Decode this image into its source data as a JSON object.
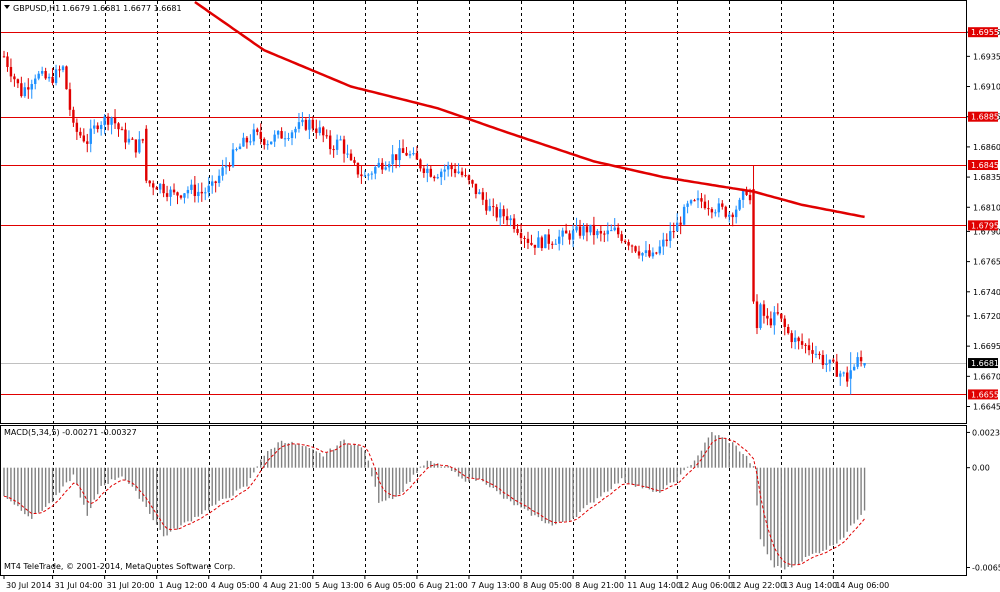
{
  "header": {
    "symbol_label": "GBPUSD,H1",
    "ohlc_label": "1.6679 1.6681 1.6677 1.6681"
  },
  "macd_label": "MACD(5,34,5) -0.00271 -0.00327",
  "copyright": "MT4 TeleTrade, © 2001-2014, MetaQuotes Software Corp.",
  "colors": {
    "bull": "#1e90ff",
    "bear": "#e00000",
    "level_line": "#e00000",
    "ma_line": "#e00000",
    "histogram": "#808080",
    "signal": "#e00000",
    "current_price_tag": "#000000"
  },
  "chart_data": [
    {
      "type": "candlestick",
      "symbol": "GBPUSD",
      "timeframe": "H1",
      "ylim": [
        1.6633,
        1.698
      ],
      "y_ticks": [
        "1.6955",
        "1.6935",
        "1.6910",
        "1.6885",
        "1.6860",
        "1.6835",
        "1.6810",
        "1.6790",
        "1.6765",
        "1.6740",
        "1.6720",
        "1.6695",
        "1.6670",
        "1.6645"
      ],
      "x_ticks": [
        "30 Jul 2014",
        "31 Jul 04:00",
        "31 Jul 20:00",
        "1 Aug 12:00",
        "4 Aug 05:00",
        "4 Aug 21:00",
        "5 Aug 13:00",
        "6 Aug 05:00",
        "6 Aug 21:00",
        "7 Aug 13:00",
        "8 Aug 05:00",
        "8 Aug 21:00",
        "11 Aug 14:00",
        "12 Aug 06:00",
        "12 Aug 22:00",
        "13 Aug 14:00",
        "14 Aug 06:00"
      ],
      "horizontal_levels": [
        1.6955,
        1.6885,
        1.6845,
        1.6795,
        1.6655
      ],
      "current_price": 1.6681,
      "last_candle": {
        "open": 1.6679,
        "high": 1.6681,
        "low": 1.6677,
        "close": 1.6681
      },
      "close_path": [
        [
          0,
          1.6935
        ],
        [
          5,
          1.6905
        ],
        [
          9,
          1.692
        ],
        [
          13,
          1.6915
        ],
        [
          17,
          1.6925
        ],
        [
          20,
          1.6875
        ],
        [
          24,
          1.6865
        ],
        [
          27,
          1.688
        ],
        [
          31,
          1.6885
        ],
        [
          34,
          1.687
        ],
        [
          38,
          1.686
        ],
        [
          41,
          1.6868
        ],
        [
          42,
          1.683
        ],
        [
          45,
          1.6828
        ],
        [
          49,
          1.682
        ],
        [
          53,
          1.6825
        ],
        [
          57,
          1.6822
        ],
        [
          60,
          1.6826
        ],
        [
          64,
          1.6845
        ],
        [
          68,
          1.686
        ],
        [
          72,
          1.687
        ],
        [
          76,
          1.6865
        ],
        [
          80,
          1.687
        ],
        [
          84,
          1.6875
        ],
        [
          88,
          1.688
        ],
        [
          91,
          1.6873
        ],
        [
          94,
          1.686
        ],
        [
          97,
          1.6865
        ],
        [
          100,
          1.6845
        ],
        [
          104,
          1.6835
        ],
        [
          108,
          1.6845
        ],
        [
          112,
          1.6852
        ],
        [
          116,
          1.6855
        ],
        [
          120,
          1.6845
        ],
        [
          124,
          1.6838
        ],
        [
          128,
          1.6843
        ],
        [
          131,
          1.684
        ],
        [
          134,
          1.683
        ],
        [
          137,
          1.682
        ],
        [
          141,
          1.6805
        ],
        [
          145,
          1.6803
        ],
        [
          149,
          1.679
        ],
        [
          152,
          1.678
        ],
        [
          156,
          1.6782
        ],
        [
          160,
          1.6785
        ],
        [
          164,
          1.6788
        ],
        [
          168,
          1.6792
        ],
        [
          172,
          1.6786
        ],
        [
          176,
          1.679
        ],
        [
          180,
          1.6782
        ],
        [
          184,
          1.6772
        ],
        [
          187,
          1.6768
        ],
        [
          190,
          1.678
        ],
        [
          194,
          1.6795
        ],
        [
          197,
          1.681
        ],
        [
          201,
          1.6815
        ],
        [
          205,
          1.681
        ],
        [
          209,
          1.6805
        ],
        [
          212,
          1.6812
        ],
        [
          214,
          1.6825
        ],
        [
          216,
          1.6805
        ],
        [
          217,
          1.673
        ],
        [
          220,
          1.6715
        ],
        [
          223,
          1.672
        ],
        [
          226,
          1.6705
        ],
        [
          229,
          1.6697
        ],
        [
          233,
          1.6693
        ],
        [
          236,
          1.6683
        ],
        [
          240,
          1.6675
        ],
        [
          243,
          1.6668
        ],
        [
          246,
          1.6683
        ],
        [
          248,
          1.6681
        ]
      ],
      "big_bars": [
        {
          "i": 41,
          "open": 1.6875,
          "high": 1.6878,
          "low": 1.683,
          "close": 1.6832
        },
        {
          "i": 216,
          "open": 1.6825,
          "high": 1.6845,
          "low": 1.673,
          "close": 1.6732
        },
        {
          "i": 217,
          "open": 1.6732,
          "high": 1.6738,
          "low": 1.6705,
          "close": 1.671
        },
        {
          "i": 244,
          "open": 1.6668,
          "high": 1.669,
          "low": 1.6655,
          "close": 1.6675
        }
      ],
      "moving_average": [
        [
          55,
          1.698
        ],
        [
          75,
          1.694
        ],
        [
          100,
          1.691
        ],
        [
          125,
          1.6892
        ],
        [
          145,
          1.6872
        ],
        [
          170,
          1.6848
        ],
        [
          190,
          1.6835
        ],
        [
          205,
          1.6828
        ],
        [
          216,
          1.6823
        ],
        [
          230,
          1.6812
        ],
        [
          248,
          1.6802
        ]
      ]
    },
    {
      "type": "histogram",
      "name": "MACD(5,34,5)",
      "main_value": -0.00271,
      "signal_value": -0.00327,
      "ylim": [
        -0.0069,
        0.0026
      ],
      "y_ticks": [
        "0.00231",
        "0.00",
        "-0.00654"
      ],
      "main_path": [
        [
          0,
          -0.0018
        ],
        [
          8,
          -0.0033
        ],
        [
          14,
          -0.0022
        ],
        [
          20,
          -0.0005
        ],
        [
          24,
          -0.0032
        ],
        [
          28,
          -0.0012
        ],
        [
          34,
          -0.0005
        ],
        [
          40,
          -0.0022
        ],
        [
          46,
          -0.0045
        ],
        [
          54,
          -0.0034
        ],
        [
          64,
          -0.002
        ],
        [
          70,
          -0.0012
        ],
        [
          74,
          0.0006
        ],
        [
          80,
          0.0018
        ],
        [
          86,
          0.0014
        ],
        [
          92,
          0.0008
        ],
        [
          98,
          0.0018
        ],
        [
          104,
          0.0012
        ],
        [
          108,
          -0.0022
        ],
        [
          114,
          -0.0018
        ],
        [
          118,
          -0.0005
        ],
        [
          122,
          0.0004
        ],
        [
          128,
          0.0
        ],
        [
          132,
          -0.0008
        ],
        [
          138,
          -0.0008
        ],
        [
          144,
          -0.002
        ],
        [
          150,
          -0.0028
        ],
        [
          158,
          -0.0038
        ],
        [
          164,
          -0.0033
        ],
        [
          172,
          -0.0018
        ],
        [
          178,
          -0.0008
        ],
        [
          184,
          -0.0013
        ],
        [
          188,
          -0.0017
        ],
        [
          194,
          -0.0008
        ],
        [
          200,
          0.0008
        ],
        [
          204,
          0.0023
        ],
        [
          210,
          0.0016
        ],
        [
          214,
          0.0007
        ],
        [
          216,
          0.0
        ],
        [
          218,
          -0.0048
        ],
        [
          222,
          -0.0065
        ],
        [
          226,
          -0.0066
        ],
        [
          232,
          -0.0058
        ],
        [
          238,
          -0.0052
        ],
        [
          242,
          -0.0045
        ],
        [
          248,
          -0.00271
        ]
      ]
    }
  ]
}
